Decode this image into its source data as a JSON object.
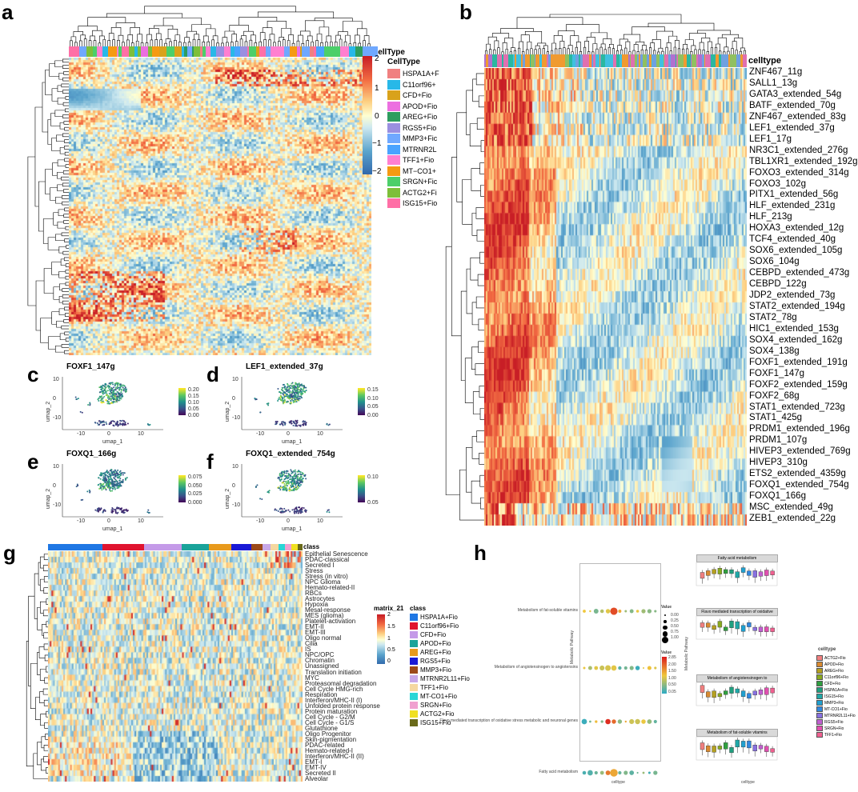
{
  "panel_letters": [
    "a",
    "b",
    "c",
    "d",
    "e",
    "f",
    "g",
    "h"
  ],
  "panel_a": {
    "top_label": "CellType",
    "legend_title": "CellType",
    "scale_ticks": [
      "2",
      "1",
      "0",
      "−1",
      "−2"
    ],
    "celltypes": [
      {
        "label": "HSPA1A+F",
        "color": "#f08080"
      },
      {
        "label": "C11orf96+",
        "color": "#28b8e8"
      },
      {
        "label": "CFD+Fio",
        "color": "#d9a21b"
      },
      {
        "label": "APOD+Fio",
        "color": "#ec6fe0"
      },
      {
        "label": "AREG+Fio",
        "color": "#2e9d5f"
      },
      {
        "label": "RGS5+Fio",
        "color": "#9a8fe0"
      },
      {
        "label": "MMP3+Fic",
        "color": "#6fa8ff"
      },
      {
        "label": "MTRNR2L",
        "color": "#4aa3ff"
      },
      {
        "label": "TFF1+Fio",
        "color": "#ff7fd0"
      },
      {
        "label": "MT−CO1+",
        "color": "#f59a12"
      },
      {
        "label": "SRGN+Fic",
        "color": "#4ccf6a"
      },
      {
        "label": "ACTG2+Fi",
        "color": "#7dbf3a"
      },
      {
        "label": "ISG15+Fio",
        "color": "#ff6fa6"
      }
    ]
  },
  "panel_b": {
    "top_label": "celltype",
    "regulons": [
      "ZNF467_11g",
      "SALL1_13g",
      "GATA3_extended_54g",
      "BATF_extended_70g",
      "ZNF467_extended_83g",
      "LEF1_extended_37g",
      "LEF1_17g",
      "NR3C1_extended_276g",
      "TBL1XR1_extended_192g",
      "FOXO3_extended_314g",
      "FOXO3_102g",
      "PITX1_extended_56g",
      "HLF_extended_231g",
      "HLF_213g",
      "HOXA3_extended_12g",
      "TCF4_extended_40g",
      "SOX6_extended_105g",
      "SOX6_104g",
      "CEBPD_extended_473g",
      "CEBPD_122g",
      "JDP2_extended_73g",
      "STAT2_extended_194g",
      "STAT2_78g",
      "HIC1_extended_153g",
      "SOX4_extended_162g",
      "SOX4_138g",
      "FOXF1_extended_191g",
      "FOXF1_147g",
      "FOXF2_extended_159g",
      "FOXF2_68g",
      "STAT1_extended_723g",
      "STAT1_425g",
      "PRDM1_extended_196g",
      "PRDM1_107g",
      "HIVEP3_extended_769g",
      "HIVEP3_310g",
      "ETS2_extended_4359g",
      "FOXQ1_extended_754g",
      "FOXQ1_166g",
      "MSC_extended_49g",
      "ZEB1_extended_22g"
    ]
  },
  "umaps": [
    {
      "title": "FOXF1_147g",
      "xlabel": "umap_1",
      "ylabel": "umap_2",
      "ticks": [
        "0.20",
        "0.15",
        "0.10",
        "0.05",
        "0.00"
      ]
    },
    {
      "title": "LEF1_extended_37g",
      "xlabel": "umap_1",
      "ylabel": "umap_2",
      "ticks": [
        "0.15",
        "0.10",
        "0.05",
        "0.00"
      ]
    },
    {
      "title": "FOXQ1_166g",
      "xlabel": "umap_1",
      "ylabel": "umap_2",
      "ticks": [
        "0.075",
        "0.050",
        "0.025",
        "0.000"
      ]
    },
    {
      "title": "FOXQ1_extended_754g",
      "xlabel": "umap_1",
      "ylabel": "umap_2",
      "ticks": [
        "0.10",
        "0.05"
      ]
    }
  ],
  "umap_axis": {
    "x_ticks": [
      "-10",
      "0",
      "10"
    ],
    "y_ticks": [
      "10",
      "0",
      "-10"
    ]
  },
  "panel_g": {
    "top_label": "class",
    "matrix_title": "matrix_21",
    "class_title": "class",
    "scale_ticks": [
      "2",
      "1.5",
      "1",
      "0.5",
      "0"
    ],
    "rows": [
      "Epithelial Senescence",
      "PDAC-classical",
      "Secreted I",
      "Stress",
      "Stress (in vitro)",
      "NPC Glioma",
      "Hemato-related-II",
      "RBCs",
      "Astrocytes",
      "Hypoxia",
      "Mesal-response",
      "MES (glioma)",
      "Platelet-activation",
      "EMT-II",
      "EMT-III",
      "Oligo normal",
      "Cilia",
      "IS",
      "NPC/OPC",
      "Chromatin",
      "Unassigned",
      "Translation initiation",
      "MYC",
      "Proteasomal degradation",
      "Cell Cycle HMG-rich",
      "Respiration",
      "Interferon/MHC-II (I)",
      "Unfolded protein response",
      "Protein maturation",
      "Cell Cycle - G2/M",
      "Cell Cycle - G1/S",
      "Glutathione",
      "Oligo Progenitor",
      "Skin-pigmentation",
      "PDAC-related",
      "Hemato-related-I",
      "Interferon/MHC-II (II)",
      "EMT-I",
      "EMT-IV",
      "Secreted II",
      "Alveolar"
    ],
    "classes": [
      {
        "label": "HSPA1A+Fio",
        "color": "#1f77e4"
      },
      {
        "label": "C11orf96+Fio",
        "color": "#e0142f"
      },
      {
        "label": "CFD+Fio",
        "color": "#c49ae8"
      },
      {
        "label": "APOD+Fio",
        "color": "#1aa39a"
      },
      {
        "label": "AREG+Fio",
        "color": "#e89a1c"
      },
      {
        "label": "RGS5+Fio",
        "color": "#1a1ad6"
      },
      {
        "label": "MMP3+Fio",
        "color": "#9c4a1a"
      },
      {
        "label": "MTRNR2L11+Fio",
        "color": "#c8a8e8"
      },
      {
        "label": "TFF1+Fio",
        "color": "#f5d8a0"
      },
      {
        "label": "MT-CO1+Fio",
        "color": "#2ad6d6"
      },
      {
        "label": "SRGN+Fio",
        "color": "#f0a0d0"
      },
      {
        "label": "ACTG2+Fio",
        "color": "#f0e020"
      },
      {
        "label": "ISG15+Fio",
        "color": "#6a6a1a"
      }
    ]
  },
  "panel_h": {
    "y_axis_label": "Metabolic Pathway",
    "x_axis_label": "celltype",
    "pathways": [
      "Metabolism of fat-soluble vitamins",
      "Metabolism of angiotensinogen to angiotensins",
      "Flavo mediated transcription of oxidative stress metabolic and neuronal genes",
      "Fatty acid metabolism"
    ],
    "size_legend_title": "Value",
    "size_ticks": [
      "0.00",
      "0.25",
      "0.50",
      "0.75",
      "1.00"
    ],
    "color_legend_title": "Value",
    "color_ticks": [
      "2.85",
      "2.00",
      "1.50",
      "1.00",
      "0.50",
      "0.05"
    ],
    "box_titles": [
      "Fatty acid metabolism",
      "Flavo mediated transcription of oxidative stress metabolic and neu",
      "Metabolism of angiotensinogen to angiotensins",
      "Metabolism of fat-soluble vitamins"
    ],
    "box_y_label": "Metabolic Pathway",
    "box_x_label": "celltype",
    "box_legend_title": "celltype",
    "box_legend": [
      {
        "label": "ACTG2+Fio",
        "color": "#f08080"
      },
      {
        "label": "APOD+Fio",
        "color": "#d98a30"
      },
      {
        "label": "AREG+Fio",
        "color": "#b5a020"
      },
      {
        "label": "C11orf96+Fio",
        "color": "#8aaa20"
      },
      {
        "label": "CFD+Fio",
        "color": "#30a040"
      },
      {
        "label": "HSPA1A+Fio",
        "color": "#20a080"
      },
      {
        "label": "ISG15+Fio",
        "color": "#20a8a8"
      },
      {
        "label": "MMP3+Fio",
        "color": "#20a0d0"
      },
      {
        "label": "MT-CO1+Fio",
        "color": "#3088e0"
      },
      {
        "label": "MTRNR2L11+Fio",
        "color": "#8870e0"
      },
      {
        "label": "RGS5+Fio",
        "color": "#c060d0"
      },
      {
        "label": "SRGN+Fio",
        "color": "#e050b0"
      },
      {
        "label": "TFF1+Fio",
        "color": "#f06090"
      }
    ]
  }
}
